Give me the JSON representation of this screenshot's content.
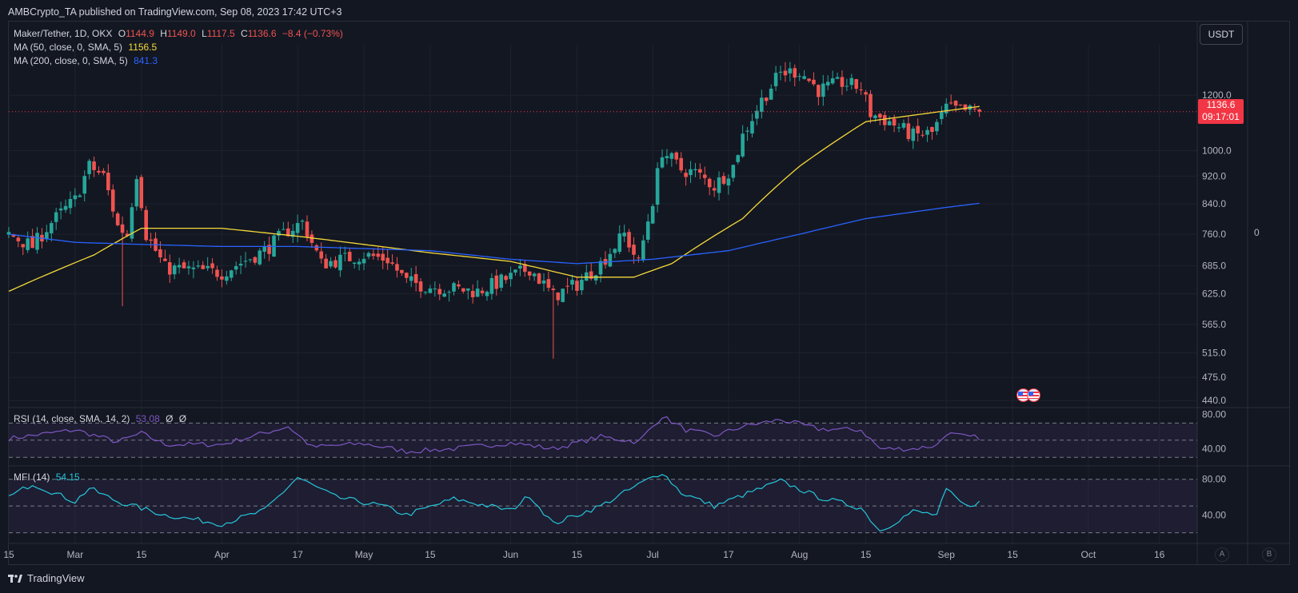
{
  "publish_line": "AMBCrypto_TA published on TradingView.com, Sep 08, 2023 17:42 UTC+3",
  "brand": "TradingView",
  "currency_button": "USDT",
  "legend": {
    "symbol": "Maker/Tether, 1D, OKX",
    "o_label": "O",
    "o_value": "1144.9",
    "h_label": "H",
    "h_value": "1149.0",
    "l_label": "L",
    "l_value": "1117.5",
    "c_label": "C",
    "c_value": "1136.6",
    "change": "−8.4 (−0.73%)",
    "ma50_label": "MA (50, close, 0, SMA, 5)",
    "ma50_value": "1156.5",
    "ma200_label": "MA (200, close, 0, SMA, 5)",
    "ma200_value": "841.3"
  },
  "price_badge": {
    "price": "1136.6",
    "countdown": "09:17:01"
  },
  "rsi_legend": {
    "label": "RSI (14, close, SMA, 14, 2)",
    "value": "53.08",
    "extra1": "Ø",
    "extra2": "Ø"
  },
  "mfi_legend": {
    "label": "MFI (14)",
    "value": "54.15"
  },
  "right_zero": "0",
  "ab_buttons": [
    "A",
    "B"
  ],
  "colors": {
    "background": "#131722",
    "up": "#26a69a",
    "down": "#ef5350",
    "ma50": "#f5d938",
    "ma200": "#2962ff",
    "rsi": "#7e57c2",
    "mfi": "#26c6da",
    "grid": "#1e222d",
    "text": "#d1d4dc",
    "axis_text": "#b2b5be"
  },
  "chart_data": [
    {
      "type": "candlestick",
      "title": "Maker/Tether, 1D, OKX",
      "y_scale": "log",
      "ylim": [
        430,
        1420
      ],
      "y_ticks": [
        1200.0,
        1000.0,
        920.0,
        840.0,
        760.0,
        685.0,
        625.0,
        565.0,
        515.0,
        475.0,
        440.0
      ],
      "x_ticks": [
        "15",
        "Mar",
        "15",
        "Apr",
        "17",
        "May",
        "15",
        "Jun",
        "15",
        "Jul",
        "17",
        "Aug",
        "15",
        "Sep",
        "15",
        "Oct",
        "16"
      ],
      "x_tick_dates": [
        "2023-02-15",
        "2023-03-01",
        "2023-03-15",
        "2023-04-01",
        "2023-04-17",
        "2023-05-01",
        "2023-05-15",
        "2023-06-01",
        "2023-06-15",
        "2023-07-01",
        "2023-07-17",
        "2023-08-01",
        "2023-08-15",
        "2023-09-01",
        "2023-09-15",
        "2023-10-01",
        "2023-10-16"
      ],
      "x_range": [
        "2023-02-15",
        "2023-10-24"
      ],
      "last_date": "2023-09-08",
      "last_price": 1136.6,
      "close_waypoints": [
        [
          "2023-02-15",
          760
        ],
        [
          "2023-02-20",
          730
        ],
        [
          "2023-02-24",
          790
        ],
        [
          "2023-03-01",
          850
        ],
        [
          "2023-03-04",
          950
        ],
        [
          "2023-03-07",
          920
        ],
        [
          "2023-03-10",
          780
        ],
        [
          "2023-03-12",
          760
        ],
        [
          "2023-03-14",
          930
        ],
        [
          "2023-03-16",
          760
        ],
        [
          "2023-03-20",
          680
        ],
        [
          "2023-04-01",
          670
        ],
        [
          "2023-04-10",
          720
        ],
        [
          "2023-04-15",
          770
        ],
        [
          "2023-04-18",
          790
        ],
        [
          "2023-04-22",
          690
        ],
        [
          "2023-05-01",
          710
        ],
        [
          "2023-05-06",
          700
        ],
        [
          "2023-05-10",
          650
        ],
        [
          "2023-05-15",
          640
        ],
        [
          "2023-05-25",
          630
        ],
        [
          "2023-06-01",
          660
        ],
        [
          "2023-06-05",
          680
        ],
        [
          "2023-06-10",
          620
        ],
        [
          "2023-06-15",
          645
        ],
        [
          "2023-06-20",
          690
        ],
        [
          "2023-06-25",
          760
        ],
        [
          "2023-06-28",
          690
        ],
        [
          "2023-07-01",
          850
        ],
        [
          "2023-07-03",
          1000
        ],
        [
          "2023-07-07",
          940
        ],
        [
          "2023-07-10",
          930
        ],
        [
          "2023-07-14",
          890
        ],
        [
          "2023-07-18",
          950
        ],
        [
          "2023-07-20",
          1050
        ],
        [
          "2023-07-24",
          1180
        ],
        [
          "2023-07-28",
          1290
        ],
        [
          "2023-08-01",
          1300
        ],
        [
          "2023-08-05",
          1220
        ],
        [
          "2023-08-10",
          1250
        ],
        [
          "2023-08-14",
          1230
        ],
        [
          "2023-08-16",
          1130
        ],
        [
          "2023-08-20",
          1100
        ],
        [
          "2023-08-25",
          1050
        ],
        [
          "2023-08-29",
          1060
        ],
        [
          "2023-09-01",
          1150
        ],
        [
          "2023-09-05",
          1140
        ],
        [
          "2023-09-08",
          1136.6
        ]
      ],
      "series": [
        {
          "name": "MA (50, close, 0, SMA, 5)",
          "last_value": 1156.5,
          "points": [
            [
              "2023-02-15",
              630
            ],
            [
              "2023-03-05",
              710
            ],
            [
              "2023-03-15",
              775
            ],
            [
              "2023-04-01",
              775
            ],
            [
              "2023-04-17",
              755
            ],
            [
              "2023-05-15",
              715
            ],
            [
              "2023-06-01",
              695
            ],
            [
              "2023-06-15",
              660
            ],
            [
              "2023-06-27",
              660
            ],
            [
              "2023-07-05",
              690
            ],
            [
              "2023-07-20",
              800
            ],
            [
              "2023-08-01",
              950
            ],
            [
              "2023-08-15",
              1100
            ],
            [
              "2023-09-01",
              1140
            ],
            [
              "2023-09-08",
              1156.5
            ]
          ]
        },
        {
          "name": "MA (200, close, 0, SMA, 5)",
          "last_value": 841.3,
          "points": [
            [
              "2023-02-15",
              760
            ],
            [
              "2023-03-01",
              740
            ],
            [
              "2023-03-15",
              735
            ],
            [
              "2023-04-01",
              730
            ],
            [
              "2023-04-17",
              730
            ],
            [
              "2023-05-15",
              720
            ],
            [
              "2023-06-01",
              700
            ],
            [
              "2023-06-15",
              690
            ],
            [
              "2023-07-01",
              700
            ],
            [
              "2023-07-17",
              720
            ],
            [
              "2023-08-01",
              760
            ],
            [
              "2023-08-15",
              800
            ],
            [
              "2023-09-01",
              830
            ],
            [
              "2023-09-08",
              841.3
            ]
          ]
        }
      ]
    },
    {
      "type": "line",
      "title": "RSI (14, close, SMA, 14, 2)",
      "last_value": 53.08,
      "y_ticks": [
        80.0,
        40.0
      ],
      "ylim": [
        20,
        88
      ],
      "band": [
        30,
        70
      ],
      "midline": 50,
      "waypoints": [
        [
          "2023-02-15",
          52
        ],
        [
          "2023-03-01",
          62
        ],
        [
          "2023-03-10",
          48
        ],
        [
          "2023-03-15",
          58
        ],
        [
          "2023-03-20",
          45
        ],
        [
          "2023-04-01",
          45
        ],
        [
          "2023-04-15",
          66
        ],
        [
          "2023-04-20",
          42
        ],
        [
          "2023-05-01",
          46
        ],
        [
          "2023-05-10",
          37
        ],
        [
          "2023-05-20",
          40
        ],
        [
          "2023-06-01",
          47
        ],
        [
          "2023-06-10",
          40
        ],
        [
          "2023-06-20",
          54
        ],
        [
          "2023-06-28",
          48
        ],
        [
          "2023-07-03",
          78
        ],
        [
          "2023-07-08",
          62
        ],
        [
          "2023-07-14",
          55
        ],
        [
          "2023-07-20",
          66
        ],
        [
          "2023-07-28",
          74
        ],
        [
          "2023-08-05",
          63
        ],
        [
          "2023-08-14",
          62
        ],
        [
          "2023-08-18",
          40
        ],
        [
          "2023-08-25",
          40
        ],
        [
          "2023-08-30",
          44
        ],
        [
          "2023-09-01",
          58
        ],
        [
          "2023-09-05",
          54
        ],
        [
          "2023-09-08",
          53.08
        ]
      ]
    },
    {
      "type": "line",
      "title": "MFI (14)",
      "last_value": 54.15,
      "y_ticks": [
        80.0,
        40.0
      ],
      "ylim": [
        8,
        95
      ],
      "band": [
        20,
        80
      ],
      "midline": 50,
      "waypoints": [
        [
          "2023-02-15",
          60
        ],
        [
          "2023-02-20",
          75
        ],
        [
          "2023-03-01",
          55
        ],
        [
          "2023-03-04",
          70
        ],
        [
          "2023-03-10",
          55
        ],
        [
          "2023-03-20",
          40
        ],
        [
          "2023-04-01",
          30
        ],
        [
          "2023-04-10",
          45
        ],
        [
          "2023-04-17",
          82
        ],
        [
          "2023-04-25",
          60
        ],
        [
          "2023-05-05",
          50
        ],
        [
          "2023-05-10",
          40
        ],
        [
          "2023-05-20",
          58
        ],
        [
          "2023-06-01",
          45
        ],
        [
          "2023-06-05",
          62
        ],
        [
          "2023-06-10",
          30
        ],
        [
          "2023-06-20",
          50
        ],
        [
          "2023-06-28",
          74
        ],
        [
          "2023-07-03",
          88
        ],
        [
          "2023-07-07",
          65
        ],
        [
          "2023-07-14",
          50
        ],
        [
          "2023-07-20",
          62
        ],
        [
          "2023-07-28",
          78
        ],
        [
          "2023-08-05",
          60
        ],
        [
          "2023-08-14",
          48
        ],
        [
          "2023-08-18",
          22
        ],
        [
          "2023-08-25",
          44
        ],
        [
          "2023-08-30",
          40
        ],
        [
          "2023-09-01",
          68
        ],
        [
          "2023-09-05",
          50
        ],
        [
          "2023-09-08",
          54.15
        ]
      ]
    }
  ]
}
